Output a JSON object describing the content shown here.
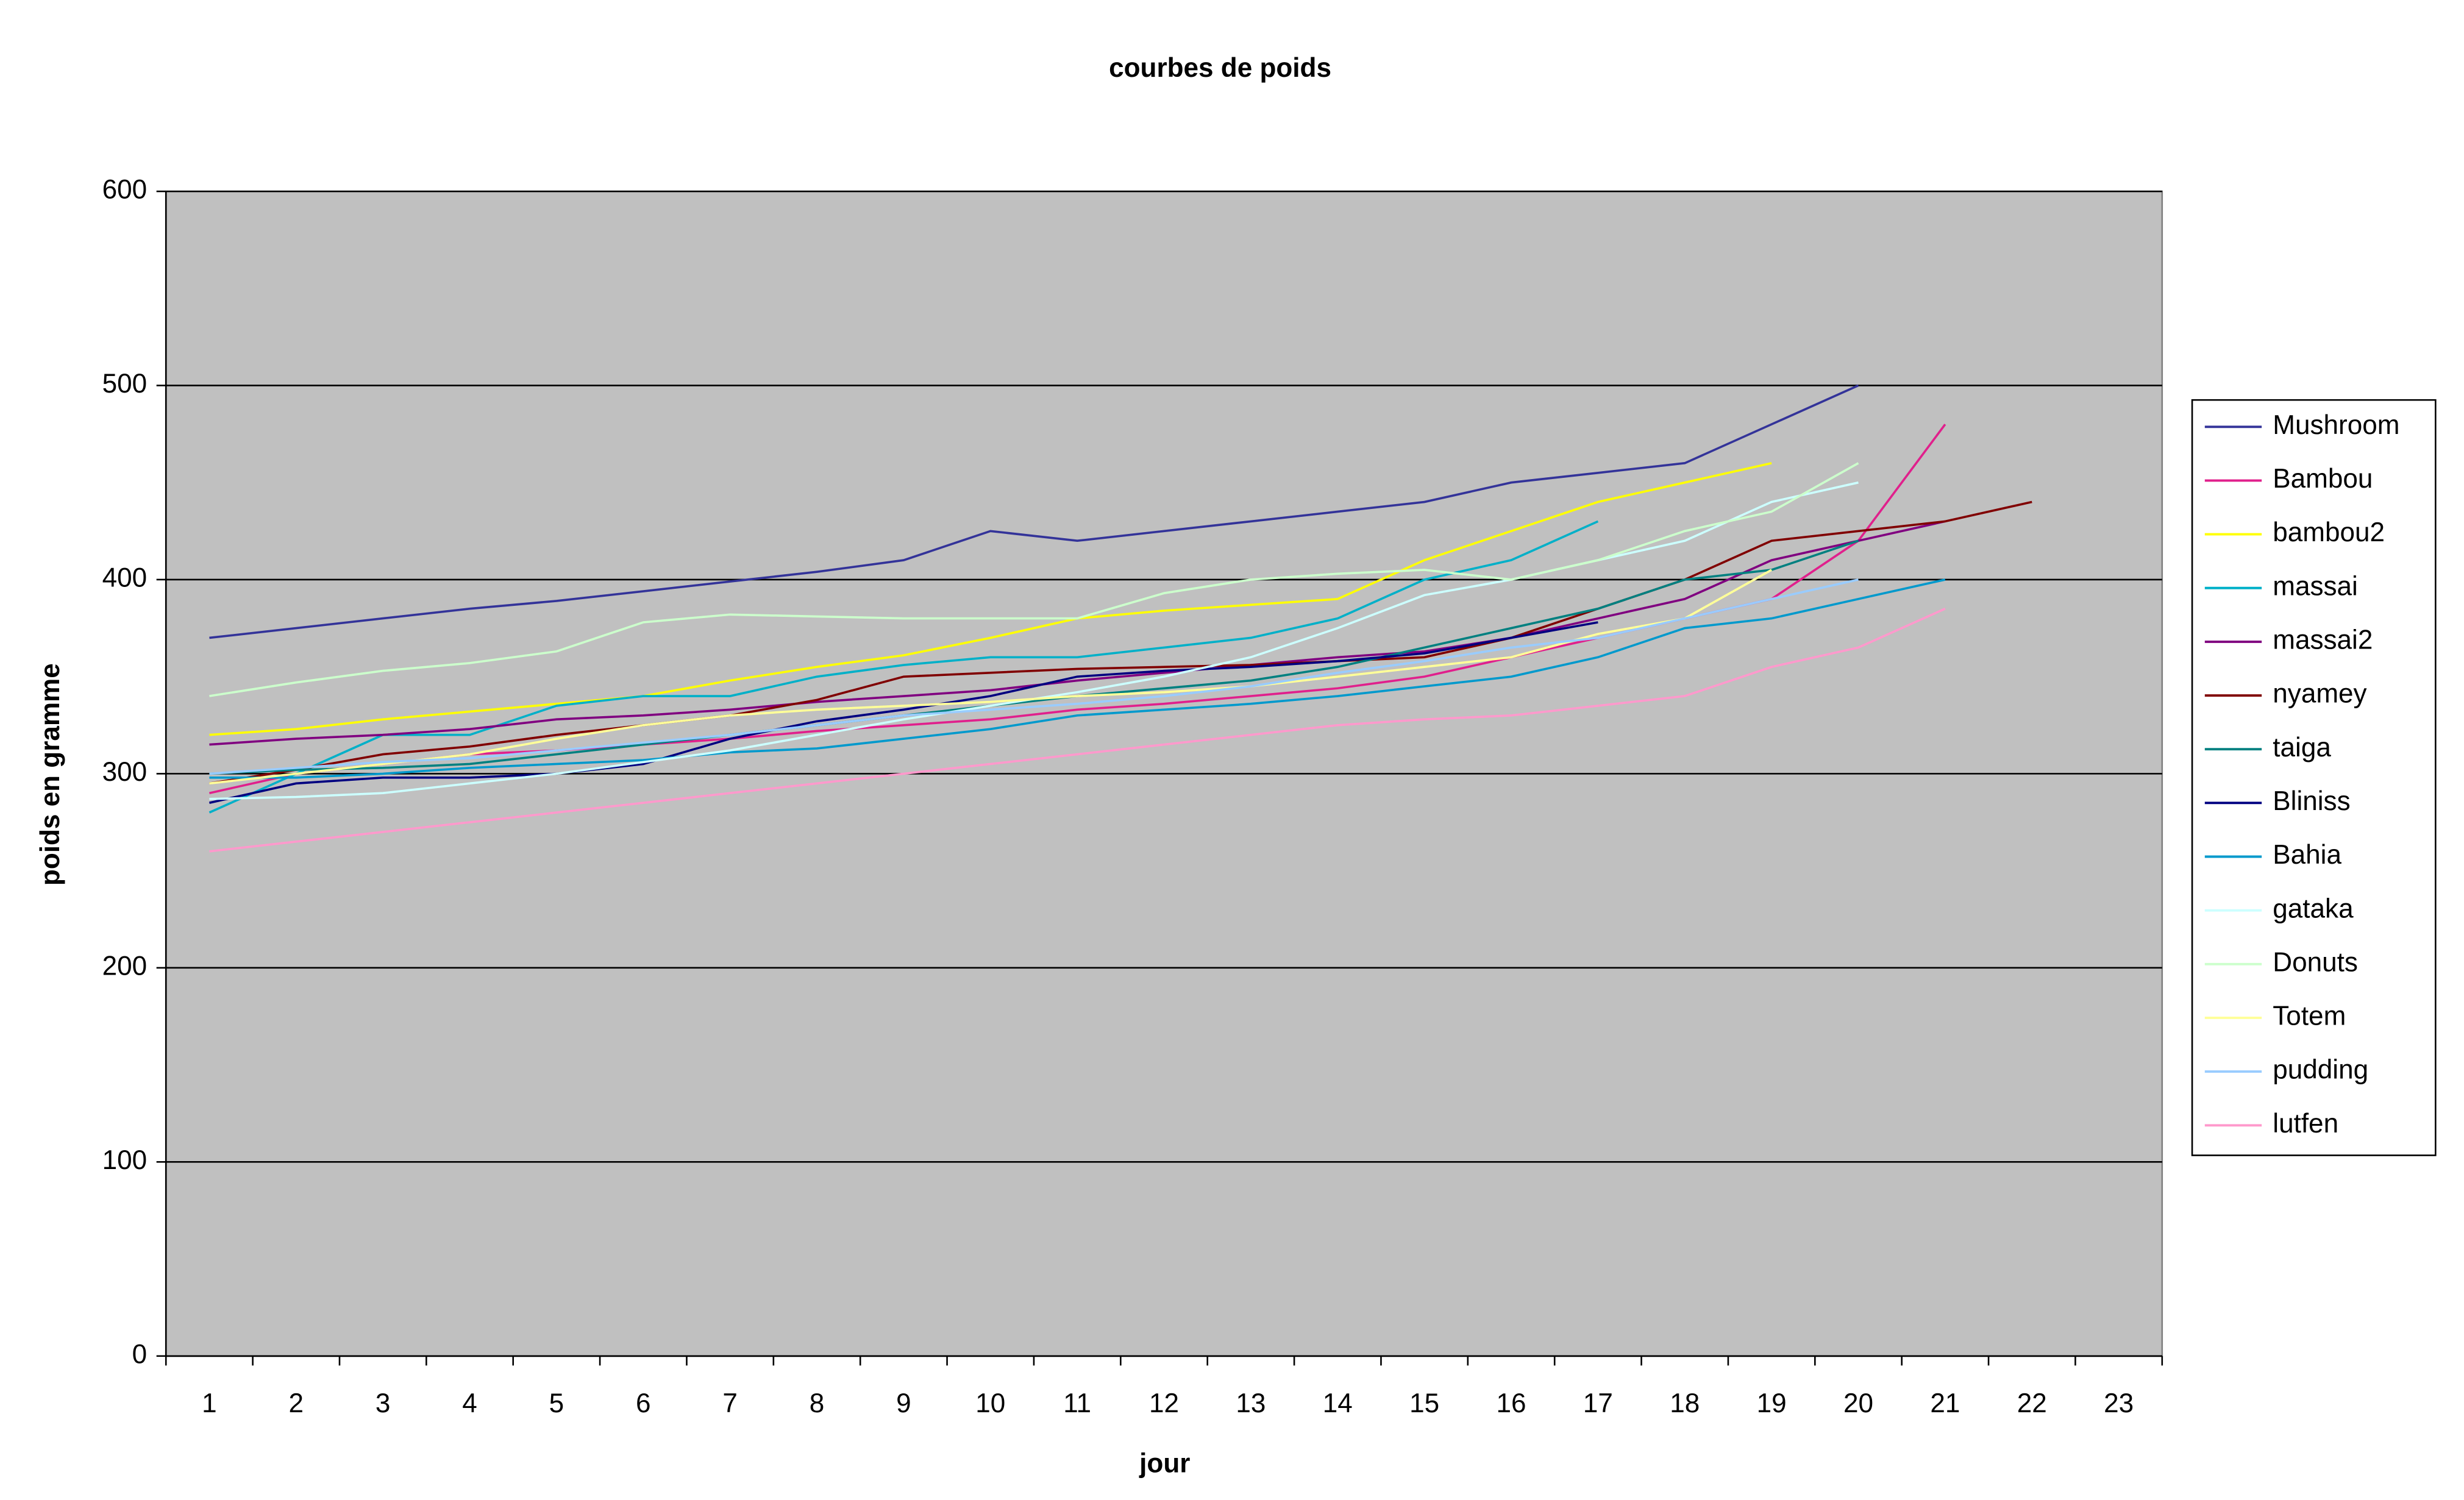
{
  "chart_data": {
    "type": "line",
    "title": "courbes de poids",
    "x_label": "jour",
    "y_label": "poids en gramme",
    "categories": [
      1,
      2,
      3,
      4,
      5,
      6,
      7,
      8,
      9,
      10,
      11,
      12,
      13,
      14,
      15,
      16,
      17,
      18,
      19,
      20,
      21,
      22,
      23
    ],
    "ylim": [
      0,
      600
    ],
    "yticks": [
      0,
      100,
      200,
      300,
      400,
      500,
      600
    ],
    "grid": true,
    "legend": "right",
    "series": [
      {
        "name": "Mushroom",
        "color": "#333399",
        "values": [
          370,
          375,
          380,
          385,
          389,
          394,
          399,
          404,
          410,
          425,
          420,
          425,
          430,
          435,
          440,
          450,
          455,
          460,
          480,
          500,
          null,
          null,
          null
        ]
      },
      {
        "name": "Bambou",
        "color": "#e0208c",
        "values": [
          290,
          300,
          305,
          310,
          312,
          315,
          318,
          322,
          325,
          328,
          333,
          336,
          340,
          344,
          350,
          360,
          370,
          380,
          390,
          420,
          480,
          null,
          null
        ]
      },
      {
        "name": "bambou2",
        "color": "#ffff00",
        "values": [
          320,
          323,
          328,
          332,
          336,
          340,
          348,
          355,
          361,
          370,
          380,
          384,
          387,
          390,
          410,
          425,
          440,
          450,
          460,
          null,
          null,
          null,
          null
        ]
      },
      {
        "name": "massai",
        "color": "#00b0c8",
        "values": [
          280,
          300,
          320,
          320,
          335,
          340,
          340,
          350,
          356,
          360,
          360,
          365,
          370,
          380,
          400,
          410,
          430,
          null,
          null,
          null,
          null,
          null,
          null
        ]
      },
      {
        "name": "massai2",
        "color": "#800080",
        "values": [
          315,
          318,
          320,
          323,
          328,
          330,
          333,
          337,
          340,
          343,
          348,
          352,
          356,
          360,
          363,
          370,
          380,
          390,
          410,
          420,
          430,
          null,
          null
        ]
      },
      {
        "name": "nyamey",
        "color": "#800000",
        "values": [
          295,
          302,
          310,
          314,
          320,
          325,
          330,
          338,
          350,
          352,
          354,
          355,
          356,
          358,
          360,
          370,
          385,
          400,
          420,
          425,
          430,
          440,
          null
        ]
      },
      {
        "name": "taiga",
        "color": "#008080",
        "values": [
          300,
          302,
          303,
          305,
          310,
          315,
          320,
          325,
          330,
          335,
          340,
          344,
          348,
          355,
          365,
          375,
          385,
          400,
          405,
          420,
          null,
          null,
          null
        ]
      },
      {
        "name": "Bliniss",
        "color": "#000080",
        "values": [
          285,
          295,
          298,
          298,
          300,
          305,
          318,
          327,
          333,
          340,
          350,
          353,
          355,
          358,
          362,
          370,
          378,
          null,
          null,
          null,
          null,
          null,
          null
        ]
      },
      {
        "name": "Bahia",
        "color": "#0099cc",
        "values": [
          298,
          298,
          300,
          303,
          305,
          307,
          311,
          313,
          318,
          323,
          330,
          333,
          336,
          340,
          345,
          350,
          360,
          375,
          380,
          390,
          400,
          null,
          null
        ]
      },
      {
        "name": "gataka",
        "color": "#ccffff",
        "values": [
          287,
          288,
          290,
          295,
          300,
          306,
          312,
          320,
          328,
          335,
          342,
          350,
          360,
          375,
          392,
          400,
          410,
          420,
          440,
          450,
          null,
          null,
          null
        ]
      },
      {
        "name": "Donuts",
        "color": "#ccffcc",
        "values": [
          340,
          347,
          353,
          357,
          363,
          378,
          382,
          381,
          380,
          380,
          380,
          393,
          400,
          403,
          405,
          400,
          410,
          425,
          435,
          460,
          null,
          null,
          null
        ]
      },
      {
        "name": "Totem",
        "color": "#ffff99",
        "values": [
          295,
          300,
          305,
          310,
          318,
          325,
          330,
          333,
          335,
          337,
          340,
          342,
          345,
          350,
          355,
          360,
          372,
          380,
          405,
          null,
          null,
          null,
          null
        ]
      },
      {
        "name": "pudding",
        "color": "#99ccff",
        "values": [
          300,
          303,
          306,
          308,
          312,
          316,
          320,
          325,
          330,
          333,
          336,
          340,
          345,
          352,
          358,
          365,
          370,
          380,
          390,
          400,
          null,
          null,
          null
        ]
      },
      {
        "name": "lutfen",
        "color": "#ff99cc",
        "values": [
          260,
          265,
          270,
          275,
          280,
          285,
          290,
          295,
          300,
          305,
          310,
          315,
          320,
          325,
          328,
          330,
          335,
          340,
          355,
          365,
          385,
          null,
          null
        ]
      }
    ]
  }
}
